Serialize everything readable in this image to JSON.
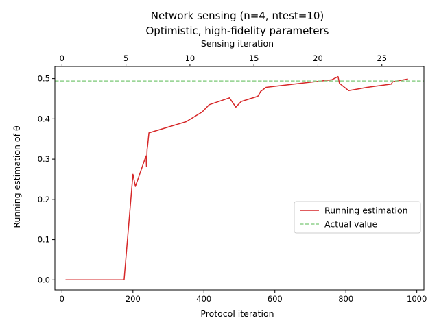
{
  "chart_data": {
    "type": "line",
    "title": "Network sensing (n=4, ntest=10)",
    "subtitle": "Optimistic, high-fidelity parameters",
    "xlabel": "Protocol iteration",
    "ylabel": "Running estimation of θ̄",
    "x2label": "Sensing iteration",
    "xlim": [
      -20,
      1020
    ],
    "ylim": [
      -0.025,
      0.53
    ],
    "x_ticks": [
      0,
      200,
      400,
      600,
      800,
      1000
    ],
    "y_ticks": [
      0.0,
      0.1,
      0.2,
      0.3,
      0.4,
      0.5
    ],
    "x2_ticks": [
      0,
      5,
      10,
      15,
      20,
      25
    ],
    "x2_per_x": 0.02773,
    "grid": false,
    "legend_position": "center-right",
    "series": [
      {
        "name": "Running estimation",
        "color": "#d62728",
        "style": "solid",
        "x": [
          10,
          175,
          200,
          207,
          237,
          238,
          240,
          241,
          245,
          350,
          395,
          415,
          472,
          490,
          505,
          552,
          560,
          575,
          760,
          778,
          782,
          808,
          860,
          928,
          932,
          975
        ],
        "y": [
          0.0,
          0.0,
          0.262,
          0.232,
          0.308,
          0.282,
          0.325,
          0.33,
          0.365,
          0.393,
          0.417,
          0.435,
          0.452,
          0.429,
          0.443,
          0.456,
          0.468,
          0.478,
          0.497,
          0.505,
          0.488,
          0.47,
          0.478,
          0.486,
          0.492,
          0.499
        ]
      },
      {
        "name": "Actual value",
        "color": "#8fd18b",
        "style": "dashed",
        "y_const": 0.494
      }
    ]
  }
}
